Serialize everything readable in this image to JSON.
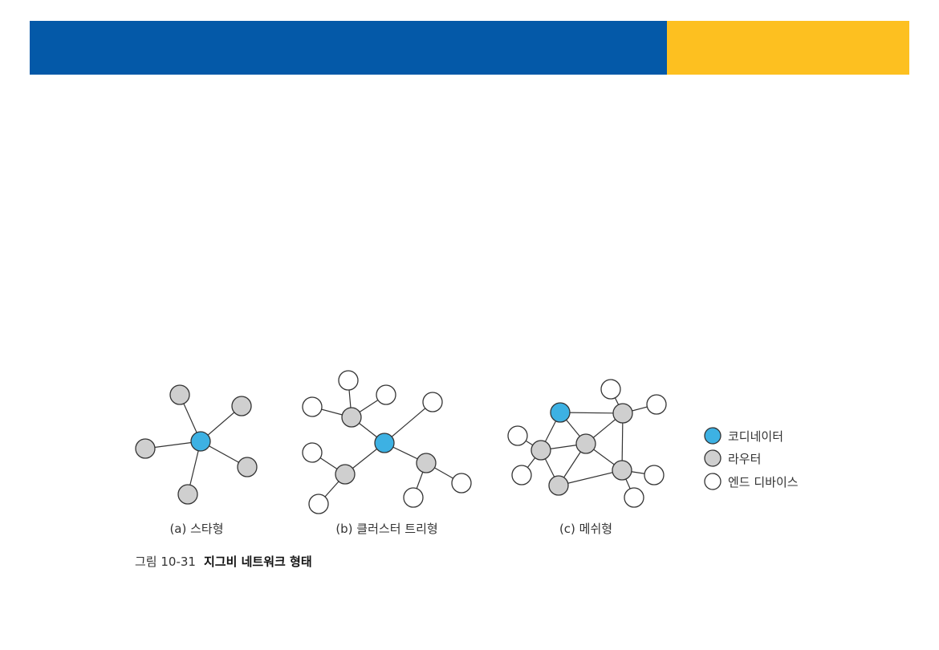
{
  "colors": {
    "banner_blue": "#0459a8",
    "banner_yellow": "#fdc020",
    "coordinator": "#3db1e3",
    "router": "#cfcfcf",
    "end_device": "#ffffff",
    "stroke": "#333333"
  },
  "topologies": [
    {
      "id": "star",
      "caption": "(a) 스타형"
    },
    {
      "id": "cluster_tree",
      "caption": "(b) 클러스터 트리형"
    },
    {
      "id": "mesh",
      "caption": "(c) 메쉬형"
    }
  ],
  "legend": {
    "coordinator": "코디네이터",
    "router": "라우터",
    "end_device": "엔드 디바이스"
  },
  "figure": {
    "number": "그림 10-31",
    "title": "지그비 네트워크 형태"
  }
}
